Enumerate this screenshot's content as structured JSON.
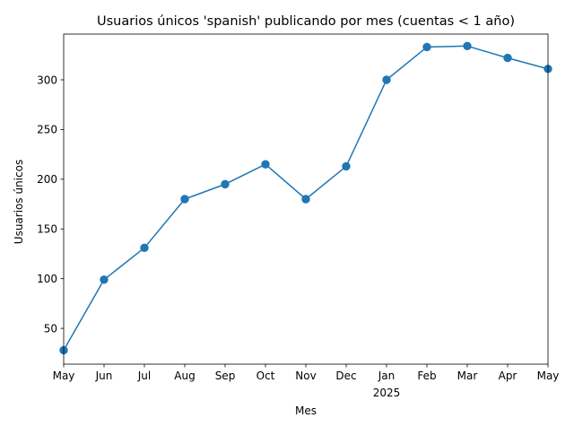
{
  "chart_data": {
    "type": "line",
    "title": "Usuarios únicos 'spanish' publicando por mes (cuentas < 1 año)",
    "xlabel": "Mes",
    "ylabel": "Usuarios únicos",
    "x": [
      "2024-05",
      "2024-06",
      "2024-07",
      "2024-08",
      "2024-09",
      "2024-10",
      "2024-11",
      "2024-12",
      "2025-01",
      "2025-02",
      "2025-03",
      "2025-04",
      "2025-05"
    ],
    "x_tick_labels": [
      "May",
      "Jun",
      "Jul",
      "Aug",
      "Sep",
      "Oct",
      "Nov",
      "Dec",
      "Jan",
      "Feb",
      "Mar",
      "Apr",
      "May"
    ],
    "x_tick_sublabels": [
      "",
      "",
      "",
      "",
      "",
      "",
      "",
      "",
      "2025",
      "",
      "",
      "",
      ""
    ],
    "series": [
      {
        "values": [
          28,
          99,
          131,
          180,
          195,
          215,
          180,
          213,
          300,
          333,
          334,
          322,
          311
        ],
        "color": "#1f77b4",
        "marker": "circle"
      }
    ],
    "ylim": [
      14,
      346
    ],
    "y_ticks": [
      50,
      100,
      150,
      200,
      250,
      300
    ],
    "grid": false,
    "legend": false
  }
}
